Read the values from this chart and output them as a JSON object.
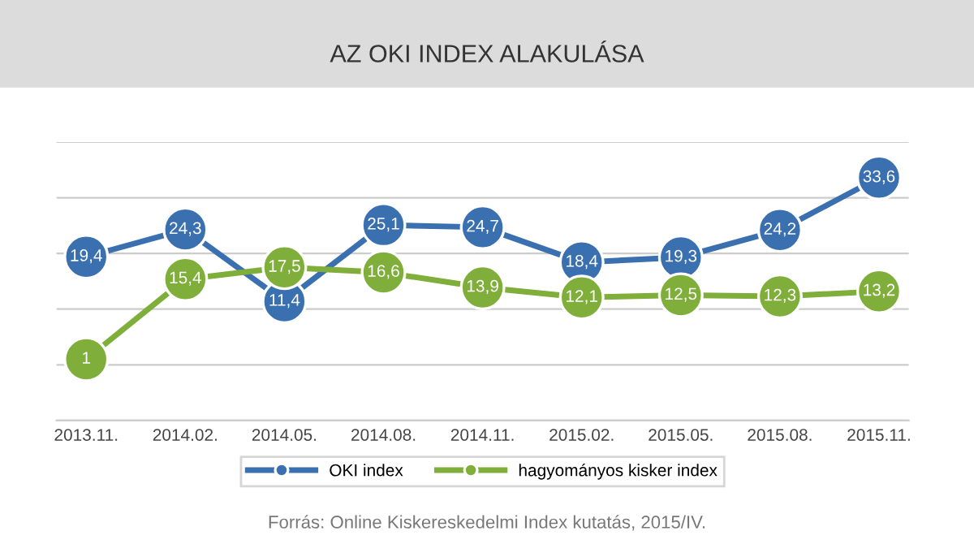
{
  "chart_data": {
    "type": "line",
    "title": "AZ OKI INDEX ALAKULÁSA",
    "categories": [
      "2013.11.",
      "2014.02.",
      "2014.05.",
      "2014.08.",
      "2014.11.",
      "2015.02.",
      "2015.05.",
      "2015.08.",
      "2015.11."
    ],
    "series": [
      {
        "name": "OKI index",
        "color": "#3a6fb0",
        "values": [
          19.4,
          24.3,
          11.4,
          25.1,
          24.7,
          18.4,
          19.3,
          24.2,
          33.6
        ],
        "value_labels": [
          "19,4",
          "24,3",
          "11,4",
          "25,1",
          "24,7",
          "18,4",
          "19,3",
          "24,2",
          "33,6"
        ]
      },
      {
        "name": "hagyományos kisker index",
        "color": "#7fae3a",
        "values": [
          1,
          15.4,
          17.5,
          16.6,
          13.9,
          12.1,
          12.5,
          12.3,
          13.2
        ],
        "value_labels": [
          "1",
          "15,4",
          "17,5",
          "16,6",
          "13,9",
          "12,1",
          "12,5",
          "12,3",
          "13,2"
        ]
      }
    ],
    "grid": "y",
    "legend": "bottom",
    "marker": "circle",
    "line_style": "solid",
    "annotations": [
      "Forrás: Online Kiskereskedelmi Index kutatás, 2015/IV."
    ]
  }
}
